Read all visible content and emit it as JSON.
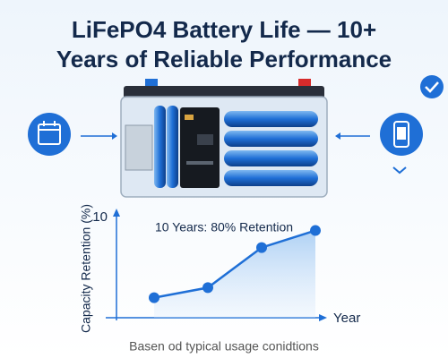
{
  "chart_data": {
    "type": "line",
    "title": [
      "LiFePO4 Battery Life — 10+",
      "Years of Reliable Performance"
    ],
    "annotation": "10 Years: 80% Retention",
    "x_label": "Year",
    "y_label": "Capacity Retention (%)",
    "footnote": "Basen od typical usage conidtions",
    "categories": [
      null,
      null,
      null,
      null
    ],
    "values": [
      2,
      3,
      7,
      8.7
    ],
    "color": "#1f6fd6",
    "ylim": [
      0,
      10
    ],
    "yticks": [
      10
    ],
    "grid": false
  }
}
